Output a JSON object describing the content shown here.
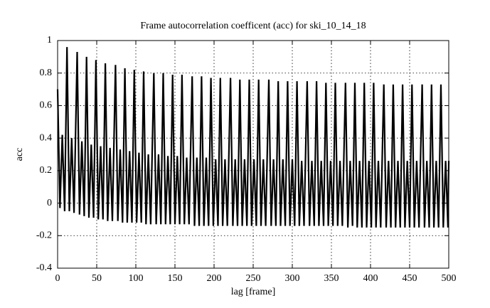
{
  "chart_data": {
    "type": "line",
    "title": "Frame autocorrelation coefficent (acc) for ski_10_14_18",
    "xlabel": "lag [frame]",
    "ylabel": "acc",
    "x": [
      0,
      3,
      6,
      9,
      12,
      15,
      18,
      21,
      25,
      28,
      31,
      34,
      37,
      40,
      43,
      46,
      49,
      52,
      55,
      58,
      61,
      64,
      67,
      70,
      74,
      77,
      80,
      83,
      86,
      89,
      92,
      95,
      98,
      101,
      104,
      107,
      110,
      113,
      116,
      119,
      123,
      126,
      129,
      132,
      135,
      138,
      141,
      144,
      147,
      150,
      153,
      156,
      159,
      162,
      165,
      168,
      172,
      175,
      178,
      181,
      184,
      187,
      190,
      193,
      196,
      199,
      202,
      205,
      208,
      211,
      214,
      217,
      221,
      224,
      227,
      230,
      233,
      236,
      239,
      242,
      245,
      248,
      251,
      254,
      257,
      260,
      263,
      266,
      270,
      273,
      276,
      279,
      282,
      285,
      288,
      291,
      294,
      297,
      300,
      303,
      306,
      309,
      312,
      315,
      319,
      322,
      325,
      328,
      331,
      334,
      337,
      340,
      343,
      346,
      349,
      352,
      355,
      358,
      361,
      364,
      368,
      371,
      374,
      377,
      380,
      383,
      386,
      389,
      392,
      395,
      398,
      401,
      404,
      407,
      410,
      413,
      417,
      420,
      423,
      426,
      429,
      432,
      435,
      438,
      441,
      444,
      447,
      450,
      453,
      456,
      459,
      462,
      466,
      469,
      472,
      475,
      478,
      481,
      484,
      487,
      490,
      493,
      496,
      499,
      500
    ],
    "series": [
      {
        "name": "acc",
        "color": "#000000",
        "values": [
          0.7,
          -0.03,
          0.42,
          -0.05,
          0.96,
          -0.05,
          0.4,
          -0.06,
          0.93,
          -0.07,
          0.38,
          -0.08,
          0.9,
          -0.09,
          0.36,
          -0.09,
          0.88,
          -0.1,
          0.35,
          -0.1,
          0.86,
          -0.11,
          0.34,
          -0.11,
          0.85,
          -0.11,
          0.33,
          -0.12,
          0.83,
          -0.12,
          0.32,
          -0.12,
          0.82,
          -0.12,
          0.31,
          -0.12,
          0.81,
          -0.13,
          0.3,
          -0.13,
          0.8,
          -0.13,
          0.3,
          -0.13,
          0.8,
          -0.13,
          0.29,
          -0.13,
          0.79,
          -0.13,
          0.29,
          -0.13,
          0.79,
          -0.13,
          0.28,
          -0.13,
          0.78,
          -0.14,
          0.28,
          -0.14,
          0.78,
          -0.14,
          0.28,
          -0.14,
          0.77,
          -0.14,
          0.27,
          -0.14,
          0.77,
          -0.14,
          0.27,
          -0.14,
          0.77,
          -0.14,
          0.27,
          -0.14,
          0.76,
          -0.14,
          0.27,
          -0.14,
          0.76,
          -0.14,
          0.27,
          -0.14,
          0.76,
          -0.14,
          0.27,
          -0.14,
          0.76,
          -0.14,
          0.27,
          -0.14,
          0.75,
          -0.14,
          0.27,
          -0.14,
          0.75,
          -0.14,
          0.27,
          -0.14,
          0.75,
          -0.14,
          0.26,
          -0.14,
          0.75,
          -0.14,
          0.26,
          -0.14,
          0.75,
          -0.14,
          0.26,
          -0.14,
          0.74,
          -0.14,
          0.26,
          -0.14,
          0.74,
          -0.14,
          0.26,
          -0.14,
          0.74,
          -0.15,
          0.26,
          -0.14,
          0.74,
          -0.15,
          0.26,
          -0.15,
          0.74,
          -0.15,
          0.26,
          -0.15,
          0.74,
          -0.15,
          0.26,
          -0.15,
          0.73,
          -0.15,
          0.26,
          -0.15,
          0.73,
          -0.15,
          0.26,
          -0.15,
          0.73,
          -0.15,
          0.26,
          -0.15,
          0.73,
          -0.15,
          0.26,
          -0.15,
          0.73,
          -0.15,
          0.26,
          -0.15,
          0.73,
          -0.15,
          0.26,
          -0.15,
          0.73,
          -0.15,
          0.26,
          -0.15,
          0.26
        ]
      }
    ],
    "xlim": [
      0,
      500
    ],
    "xticks": [
      0,
      50,
      100,
      150,
      200,
      250,
      300,
      350,
      400,
      450,
      500
    ],
    "ylim": [
      -0.4,
      1
    ],
    "yticks": [
      -0.4,
      -0.2,
      0,
      0.2,
      0.4,
      0.6,
      0.8,
      1
    ],
    "grid": true
  }
}
